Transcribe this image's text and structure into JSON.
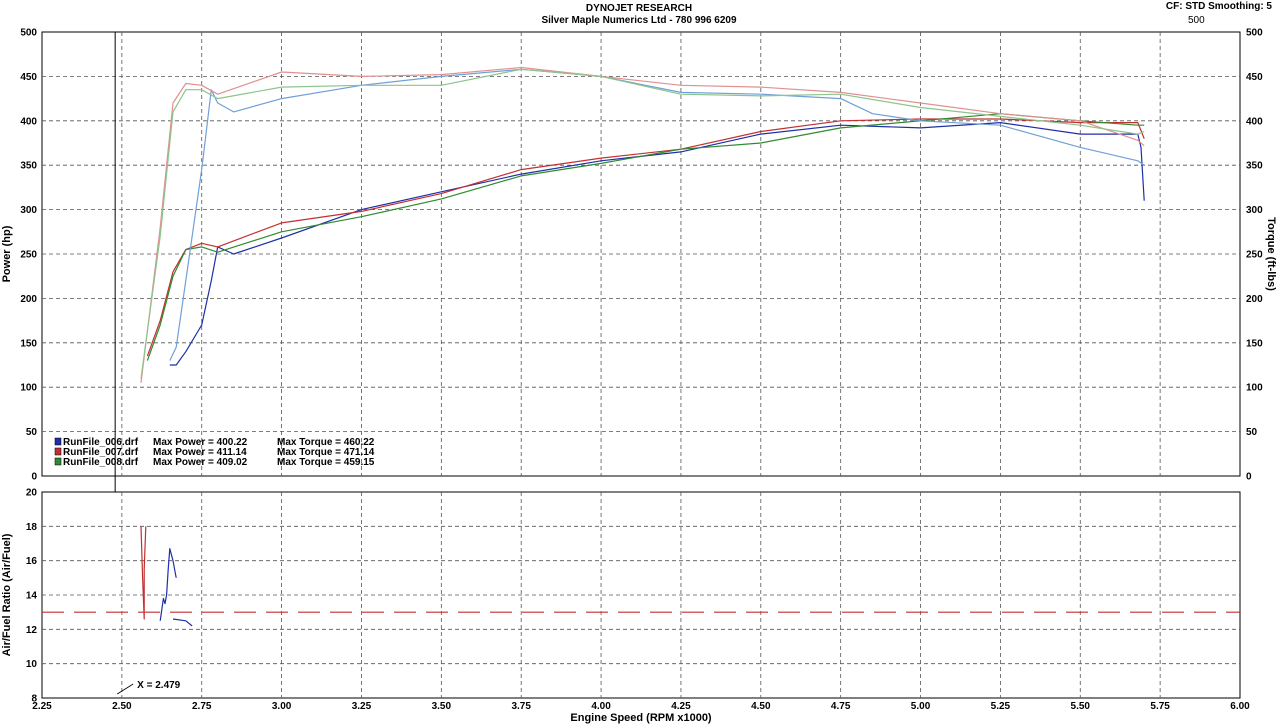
{
  "header": {
    "title": "DYNOJET RESEARCH",
    "subtitle": "Silver Maple Numerics Ltd - 780 996 6209",
    "cf_smoothing": "CF: STD  Smoothing: 5",
    "aux_label": "500"
  },
  "chart_data": [
    {
      "type": "line",
      "title": "",
      "xlabel": "Engine Speed (RPM x1000)",
      "ylabel": "Power (hp)",
      "y2label": "Torque (ft-lbs)",
      "xlim": [
        2.25,
        6.0
      ],
      "ylim": [
        0,
        500
      ],
      "y2lim": [
        0,
        500
      ],
      "x_ticks": [
        "2.25",
        "2.50",
        "2.75",
        "3.00",
        "3.25",
        "3.50",
        "3.75",
        "4.00",
        "4.25",
        "4.50",
        "4.75",
        "5.00",
        "5.25",
        "5.50",
        "5.75",
        "6.00"
      ],
      "y_ticks": [
        "0",
        "50",
        "100",
        "150",
        "200",
        "250",
        "300",
        "350",
        "400",
        "450",
        "500"
      ],
      "grid": true,
      "legend_position": "bottom-left",
      "legend": [
        {
          "file": "RunFile_006.drf",
          "power": "Max Power = 400.22",
          "torque": "Max Torque = 460.22",
          "color": "#1f2fa8"
        },
        {
          "file": "RunFile_007.drf",
          "power": "Max Power = 411.14",
          "torque": "Max Torque = 471.14",
          "color": "#c23030"
        },
        {
          "file": "RunFile_008.drf",
          "power": "Max Power = 409.02",
          "torque": "Max Torque = 459.15",
          "color": "#2e8b2e"
        }
      ],
      "series": [
        {
          "name": "RunFile_006.drf",
          "measure": "Power",
          "color": "#1f2fa8",
          "x": [
            2.65,
            2.67,
            2.7,
            2.75,
            2.78,
            2.8,
            2.85,
            3.0,
            3.25,
            3.5,
            3.75,
            4.0,
            4.25,
            4.5,
            4.75,
            5.0,
            5.25,
            5.5,
            5.68,
            5.69,
            5.7
          ],
          "y": [
            125,
            125,
            140,
            170,
            220,
            258,
            250,
            268,
            300,
            320,
            340,
            355,
            365,
            385,
            395,
            392,
            398,
            385,
            385,
            370,
            310
          ]
        },
        {
          "name": "RunFile_007.drf",
          "measure": "Power",
          "color": "#c23030",
          "x": [
            2.58,
            2.62,
            2.66,
            2.7,
            2.75,
            2.8,
            3.0,
            3.25,
            3.5,
            3.75,
            4.0,
            4.25,
            4.5,
            4.75,
            5.0,
            5.25,
            5.5,
            5.68,
            5.7
          ],
          "y": [
            135,
            175,
            230,
            255,
            262,
            258,
            285,
            298,
            318,
            345,
            358,
            368,
            388,
            400,
            402,
            402,
            398,
            398,
            380
          ]
        },
        {
          "name": "RunFile_008.drf",
          "measure": "Power",
          "color": "#2e8b2e",
          "x": [
            2.58,
            2.62,
            2.66,
            2.7,
            2.75,
            2.8,
            3.0,
            3.25,
            3.5,
            3.75,
            4.0,
            4.25,
            4.5,
            4.75,
            5.0,
            5.25,
            5.5,
            5.68,
            5.7
          ],
          "y": [
            130,
            170,
            225,
            255,
            258,
            252,
            275,
            292,
            312,
            338,
            352,
            368,
            375,
            392,
            400,
            408,
            400,
            395,
            395
          ]
        },
        {
          "name": "RunFile_006.drf",
          "measure": "Torque",
          "color": "#6fa0d8",
          "x": [
            2.65,
            2.67,
            2.7,
            2.75,
            2.78,
            2.8,
            2.85,
            3.0,
            3.25,
            3.5,
            3.75,
            4.0,
            4.25,
            4.5,
            4.75,
            4.85,
            5.0,
            5.25,
            5.5,
            5.68,
            5.7
          ],
          "y": [
            130,
            145,
            220,
            345,
            435,
            420,
            410,
            425,
            440,
            450,
            458,
            450,
            432,
            430,
            425,
            408,
            400,
            395,
            370,
            355,
            350
          ]
        },
        {
          "name": "RunFile_007.drf",
          "measure": "Torque",
          "color": "#e09090",
          "x": [
            2.56,
            2.62,
            2.66,
            2.7,
            2.75,
            2.8,
            3.0,
            3.25,
            3.5,
            3.75,
            4.0,
            4.25,
            4.5,
            4.75,
            5.0,
            5.25,
            5.5,
            5.68,
            5.7
          ],
          "y": [
            105,
            280,
            420,
            442,
            440,
            430,
            455,
            450,
            452,
            460,
            450,
            440,
            438,
            432,
            420,
            408,
            400,
            378,
            372
          ]
        },
        {
          "name": "RunFile_008.drf",
          "measure": "Torque",
          "color": "#8cc48c",
          "x": [
            2.56,
            2.62,
            2.66,
            2.7,
            2.75,
            2.8,
            3.0,
            3.25,
            3.5,
            3.75,
            4.0,
            4.25,
            4.5,
            4.75,
            5.0,
            5.25,
            5.5,
            5.68,
            5.7
          ],
          "y": [
            110,
            270,
            410,
            435,
            435,
            425,
            438,
            440,
            440,
            458,
            450,
            430,
            428,
            430,
            415,
            405,
            395,
            385,
            388
          ]
        }
      ]
    },
    {
      "type": "line",
      "title": "",
      "xlabel": "Engine Speed (RPM x1000)",
      "ylabel": "Air/Fuel Ratio (Air/Fuel)",
      "xlim": [
        2.25,
        6.0
      ],
      "ylim": [
        8,
        20
      ],
      "y_ticks": [
        "8",
        "10",
        "12",
        "14",
        "16",
        "18",
        "20"
      ],
      "grid": true,
      "reference_line": {
        "y": 13,
        "color": "#c23030",
        "style": "dashed"
      },
      "cursor": {
        "x": 2.479,
        "label": "X = 2.479"
      },
      "series": [
        {
          "name": "RunFile_006.drf",
          "color": "#1f2fa8",
          "x": [
            2.62,
            2.63,
            2.635,
            2.64,
            2.645,
            2.65,
            2.66,
            2.67
          ],
          "y": [
            12.5,
            13.8,
            13.5,
            14,
            15.5,
            16.7,
            16,
            15
          ]
        },
        {
          "name": "RunFile_006.drf",
          "color": "#1f2fa8",
          "x": [
            2.66,
            2.7,
            2.72
          ],
          "y": [
            12.6,
            12.5,
            12.2
          ]
        },
        {
          "name": "RunFile_007.drf",
          "color": "#c23030",
          "x": [
            2.56,
            2.565,
            2.57,
            2.57,
            2.575
          ],
          "y": [
            18,
            15,
            12.6,
            15.5,
            18
          ]
        }
      ]
    }
  ]
}
